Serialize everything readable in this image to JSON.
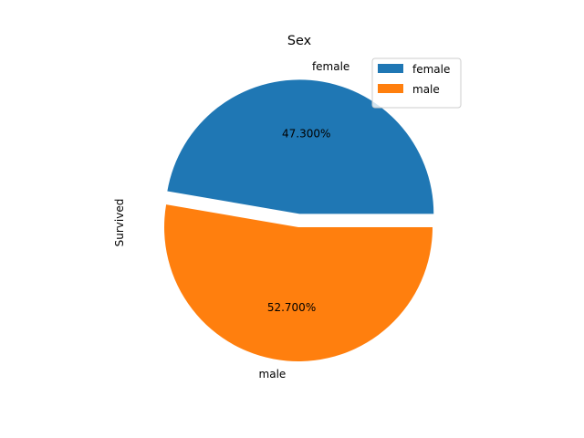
{
  "chart_data": {
    "type": "pie",
    "title": "Sex",
    "ylabel": "Survived",
    "categories": [
      "female",
      "male"
    ],
    "values": [
      47.3,
      52.7
    ],
    "value_labels": [
      "47.300%",
      "52.700%"
    ],
    "explode": [
      0.1,
      0.0
    ],
    "colors": [
      "#1f77b4",
      "#ff7f0e"
    ],
    "legend": {
      "position": "upper-right",
      "entries": [
        "female",
        "male"
      ]
    }
  }
}
